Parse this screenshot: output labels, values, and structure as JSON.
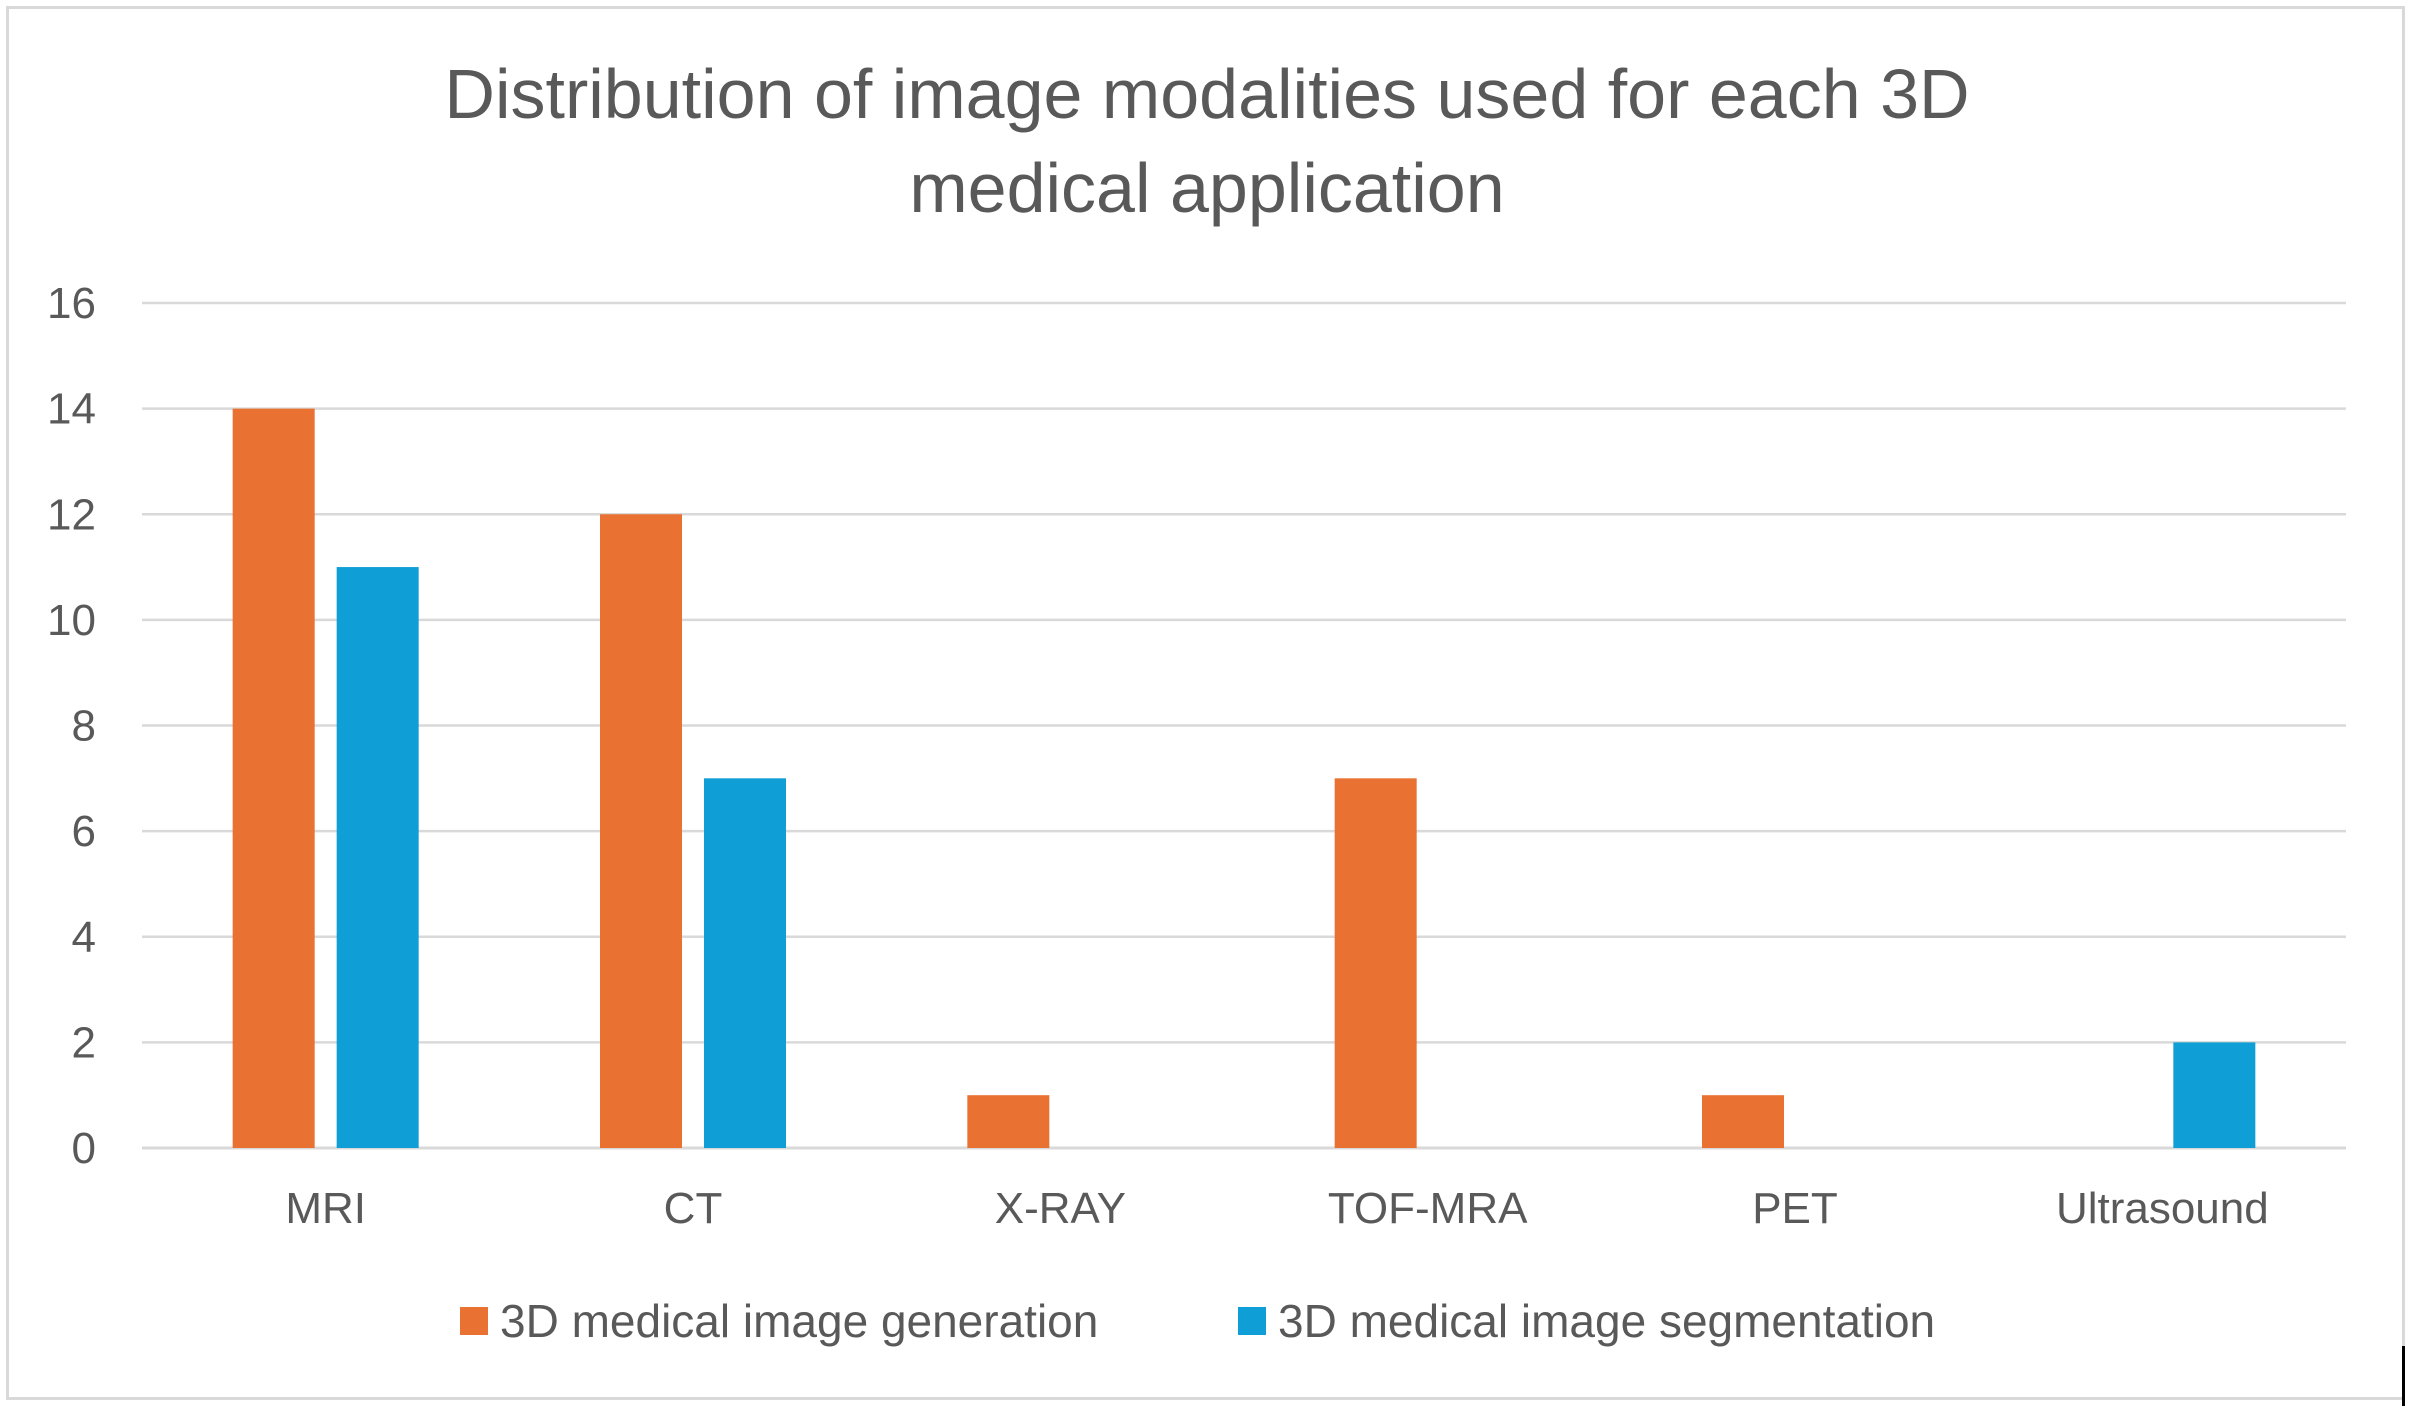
{
  "colors": {
    "generation": "#E97132",
    "segmentation": "#0F9ED5",
    "gridline": "#D9D9D9",
    "text": "#595959"
  },
  "chart_data": {
    "type": "bar",
    "title_lines": [
      "Distribution of image modalities used for each 3D",
      "medical application"
    ],
    "categories": [
      "MRI",
      "CT",
      "X-RAY",
      "TOF-MRA",
      "PET",
      "Ultrasound"
    ],
    "series": [
      {
        "name": "3D medical image generation",
        "values": [
          14,
          12,
          1,
          7,
          1,
          0
        ]
      },
      {
        "name": "3D medical image segmentation",
        "values": [
          11,
          7,
          0,
          0,
          0,
          2
        ]
      }
    ],
    "ylim": [
      0,
      16
    ],
    "yticks": [
      0,
      2,
      4,
      6,
      8,
      10,
      12,
      14,
      16
    ],
    "grid": true,
    "legend_position": "bottom",
    "xlabel": "",
    "ylabel": ""
  }
}
